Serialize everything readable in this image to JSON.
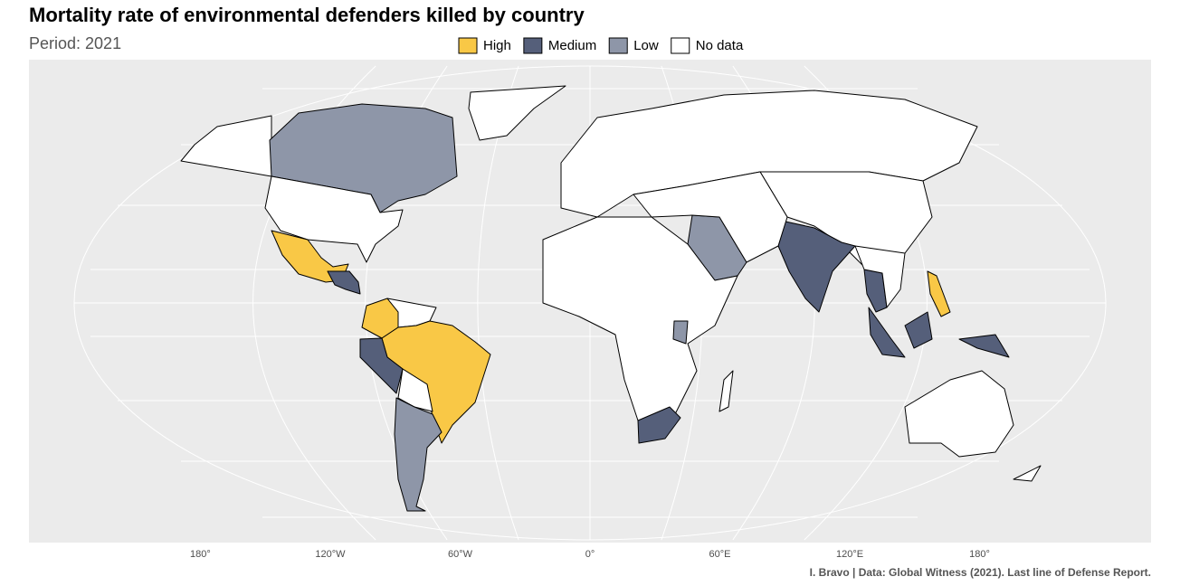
{
  "chart_data": {
    "type": "choropleth",
    "title": "Mortality rate of environmental defenders killed by country",
    "subtitle": "Period: 2021",
    "legend": [
      {
        "name": "High",
        "color": "#f9c846"
      },
      {
        "name": "Medium",
        "color": "#555f7a"
      },
      {
        "name": "Low",
        "color": "#8e96a8"
      },
      {
        "name": "No data",
        "color": "#ffffff"
      }
    ],
    "xticks": [
      {
        "value": -180,
        "label": "180°"
      },
      {
        "value": -120,
        "label": "120°W"
      },
      {
        "value": -60,
        "label": "60°W"
      },
      {
        "value": 0,
        "label": "0°"
      },
      {
        "value": 60,
        "label": "60°E"
      },
      {
        "value": 120,
        "label": "120°E"
      },
      {
        "value": 180,
        "label": "180°"
      }
    ],
    "caption": "I. Bravo | Data: Global Witness (2021). Last line of Defense Report."
  }
}
